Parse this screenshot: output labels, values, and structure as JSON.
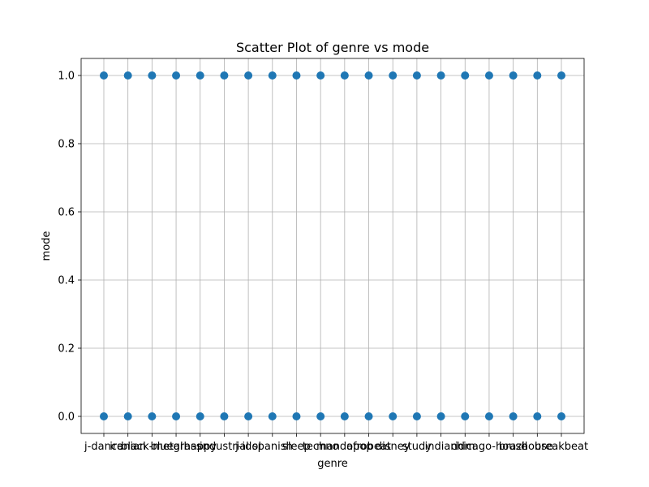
{
  "chart_data": {
    "type": "scatter",
    "title": "Scatter Plot of genre vs mode",
    "xlabel": "genre",
    "ylabel": "mode",
    "categories": [
      "j-dance",
      "iranian",
      "black-metal",
      "bluegrass",
      "happy",
      "industrial",
      "j-idol",
      "spanish",
      "sleep",
      "techno",
      "mandopop",
      "afrobeat",
      "disney",
      "study",
      "indian",
      "idm",
      "chicago-house",
      "brazil",
      "house",
      "breakbeat"
    ],
    "series": [
      {
        "color": "#1f77b4",
        "points": [
          {
            "x": "j-dance",
            "y": 1.0
          },
          {
            "x": "j-dance",
            "y": 0.0
          },
          {
            "x": "iranian",
            "y": 1.0
          },
          {
            "x": "iranian",
            "y": 0.0
          },
          {
            "x": "black-metal",
            "y": 1.0
          },
          {
            "x": "black-metal",
            "y": 0.0
          },
          {
            "x": "bluegrass",
            "y": 1.0
          },
          {
            "x": "bluegrass",
            "y": 0.0
          },
          {
            "x": "happy",
            "y": 1.0
          },
          {
            "x": "happy",
            "y": 0.0
          },
          {
            "x": "industrial",
            "y": 1.0
          },
          {
            "x": "industrial",
            "y": 0.0
          },
          {
            "x": "j-idol",
            "y": 1.0
          },
          {
            "x": "j-idol",
            "y": 0.0
          },
          {
            "x": "spanish",
            "y": 1.0
          },
          {
            "x": "spanish",
            "y": 0.0
          },
          {
            "x": "sleep",
            "y": 1.0
          },
          {
            "x": "sleep",
            "y": 0.0
          },
          {
            "x": "techno",
            "y": 1.0
          },
          {
            "x": "techno",
            "y": 0.0
          },
          {
            "x": "mandopop",
            "y": 1.0
          },
          {
            "x": "mandopop",
            "y": 0.0
          },
          {
            "x": "afrobeat",
            "y": 1.0
          },
          {
            "x": "afrobeat",
            "y": 0.0
          },
          {
            "x": "disney",
            "y": 1.0
          },
          {
            "x": "disney",
            "y": 0.0
          },
          {
            "x": "study",
            "y": 1.0
          },
          {
            "x": "study",
            "y": 0.0
          },
          {
            "x": "indian",
            "y": 1.0
          },
          {
            "x": "indian",
            "y": 0.0
          },
          {
            "x": "idm",
            "y": 1.0
          },
          {
            "x": "idm",
            "y": 0.0
          },
          {
            "x": "chicago-house",
            "y": 1.0
          },
          {
            "x": "chicago-house",
            "y": 0.0
          },
          {
            "x": "brazil",
            "y": 1.0
          },
          {
            "x": "brazil",
            "y": 0.0
          },
          {
            "x": "house",
            "y": 1.0
          },
          {
            "x": "house",
            "y": 0.0
          },
          {
            "x": "breakbeat",
            "y": 1.0
          },
          {
            "x": "breakbeat",
            "y": 0.0
          }
        ]
      }
    ],
    "ylim": [
      -0.05,
      1.05
    ],
    "yticks": [
      "0.0",
      "0.2",
      "0.4",
      "0.6",
      "0.8",
      "1.0"
    ],
    "grid": true,
    "legend": "none"
  }
}
